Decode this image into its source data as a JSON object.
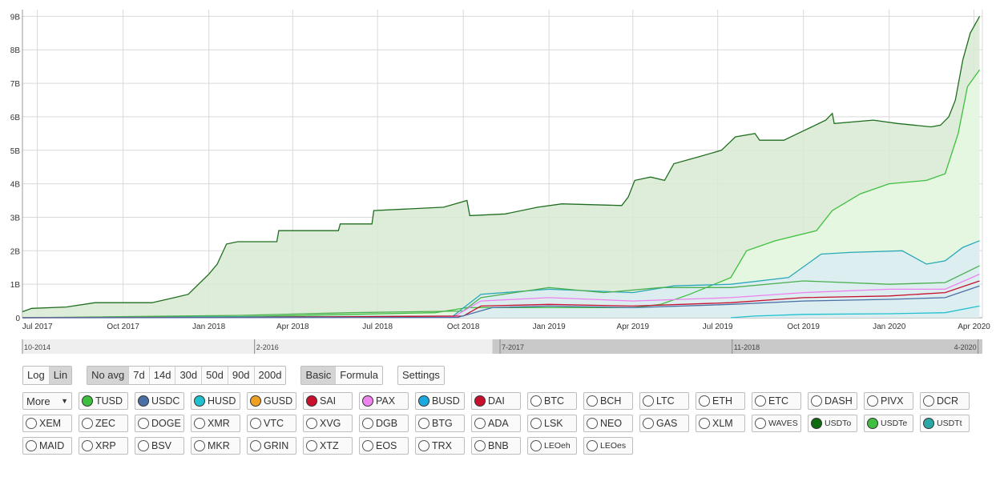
{
  "chart_data": {
    "type": "area",
    "ylim": [
      0,
      9200000000
    ],
    "y_ticks": [
      "0",
      "1B",
      "2B",
      "3B",
      "4B",
      "5B",
      "6B",
      "7B",
      "8B",
      "9B"
    ],
    "y_tick_values": [
      0,
      1000000000,
      2000000000,
      3000000000,
      4000000000,
      5000000000,
      6000000000,
      7000000000,
      8000000000,
      9000000000
    ],
    "x_ticks": [
      "Jul 2017",
      "Oct 2017",
      "Jan 2018",
      "Apr 2018",
      "Jul 2018",
      "Oct 2018",
      "Jan 2019",
      "Apr 2019",
      "Jul 2019",
      "Oct 2019",
      "Jan 2020",
      "Apr 2020"
    ],
    "x_tick_dates": [
      "2017-07-01",
      "2017-10-01",
      "2018-01-01",
      "2018-04-01",
      "2018-07-01",
      "2018-10-01",
      "2019-01-01",
      "2019-04-01",
      "2019-07-01",
      "2019-10-01",
      "2020-01-01",
      "2020-04-01"
    ],
    "xlim": [
      "2017-06-15",
      "2020-04-10"
    ],
    "grid": true,
    "series": [
      {
        "name": "USDTo",
        "color": "#1f6e1f",
        "fill": "#d8ead2",
        "stacked_total": true,
        "points": [
          [
            "2017-06-15",
            0.18
          ],
          [
            "2017-06-25",
            0.28
          ],
          [
            "2017-08-01",
            0.32
          ],
          [
            "2017-09-01",
            0.45
          ],
          [
            "2017-11-01",
            0.45
          ],
          [
            "2017-11-25",
            0.6
          ],
          [
            "2017-12-10",
            0.7
          ],
          [
            "2018-01-01",
            1.3
          ],
          [
            "2018-01-10",
            1.6
          ],
          [
            "2018-01-20",
            2.2
          ],
          [
            "2018-02-01",
            2.27
          ],
          [
            "2018-03-15",
            2.27
          ],
          [
            "2018-03-17",
            2.6
          ],
          [
            "2018-05-20",
            2.6
          ],
          [
            "2018-05-22",
            2.8
          ],
          [
            "2018-06-25",
            2.8
          ],
          [
            "2018-06-27",
            3.2
          ],
          [
            "2018-09-10",
            3.3
          ],
          [
            "2018-10-05",
            3.5
          ],
          [
            "2018-10-08",
            3.05
          ],
          [
            "2018-11-15",
            3.1
          ],
          [
            "2018-12-20",
            3.3
          ],
          [
            "2019-01-15",
            3.4
          ],
          [
            "2019-03-20",
            3.35
          ],
          [
            "2019-03-27",
            3.6
          ],
          [
            "2019-04-03",
            4.1
          ],
          [
            "2019-04-20",
            4.2
          ],
          [
            "2019-05-05",
            4.1
          ],
          [
            "2019-05-15",
            4.6
          ],
          [
            "2019-06-10",
            4.8
          ],
          [
            "2019-07-05",
            5.0
          ],
          [
            "2019-07-20",
            5.4
          ],
          [
            "2019-08-10",
            5.5
          ],
          [
            "2019-08-15",
            5.3
          ],
          [
            "2019-09-10",
            5.3
          ],
          [
            "2019-09-25",
            5.5
          ],
          [
            "2019-10-10",
            5.7
          ],
          [
            "2019-10-25",
            5.9
          ],
          [
            "2019-11-01",
            6.1
          ],
          [
            "2019-11-03",
            5.8
          ],
          [
            "2019-12-15",
            5.9
          ],
          [
            "2020-01-10",
            5.8
          ],
          [
            "2020-02-15",
            5.7
          ],
          [
            "2020-02-25",
            5.75
          ],
          [
            "2020-03-05",
            6.0
          ],
          [
            "2020-03-12",
            6.5
          ],
          [
            "2020-03-20",
            7.7
          ],
          [
            "2020-03-28",
            8.5
          ],
          [
            "2020-04-07",
            9.0
          ]
        ]
      },
      {
        "name": "USDTe",
        "color": "#3fbf3f",
        "fill": "#e6f7e2",
        "points": [
          [
            "2017-06-15",
            0.0
          ],
          [
            "2018-02-01",
            0.03
          ],
          [
            "2018-06-01",
            0.1
          ],
          [
            "2018-09-01",
            0.15
          ],
          [
            "2018-10-05",
            0.3
          ],
          [
            "2018-11-15",
            0.3
          ],
          [
            "2019-04-01",
            0.3
          ],
          [
            "2019-05-01",
            0.4
          ],
          [
            "2019-06-01",
            0.7
          ],
          [
            "2019-07-15",
            1.2
          ],
          [
            "2019-08-01",
            2.0
          ],
          [
            "2019-09-01",
            2.3
          ],
          [
            "2019-10-15",
            2.6
          ],
          [
            "2019-11-01",
            3.2
          ],
          [
            "2019-12-01",
            3.7
          ],
          [
            "2020-01-01",
            4.0
          ],
          [
            "2020-02-10",
            4.1
          ],
          [
            "2020-03-01",
            4.3
          ],
          [
            "2020-03-15",
            5.5
          ],
          [
            "2020-03-25",
            6.9
          ],
          [
            "2020-04-07",
            7.4
          ]
        ]
      },
      {
        "name": "USDTt",
        "color": "#2aa8b8",
        "fill": "#dcecf3",
        "points": [
          [
            "2017-06-15",
            0.0
          ],
          [
            "2018-09-20",
            0.05
          ],
          [
            "2018-10-20",
            0.7
          ],
          [
            "2019-01-01",
            0.85
          ],
          [
            "2019-04-01",
            0.75
          ],
          [
            "2019-05-15",
            0.95
          ],
          [
            "2019-07-15",
            1.0
          ],
          [
            "2019-09-15",
            1.2
          ],
          [
            "2019-10-20",
            1.9
          ],
          [
            "2019-11-20",
            1.95
          ],
          [
            "2020-01-15",
            2.0
          ],
          [
            "2020-02-10",
            1.6
          ],
          [
            "2020-03-01",
            1.7
          ],
          [
            "2020-03-20",
            2.1
          ],
          [
            "2020-04-07",
            2.3
          ]
        ]
      },
      {
        "name": "TUSD",
        "color": "#4caf50",
        "fill": "none",
        "points": [
          [
            "2017-06-15",
            0.0
          ],
          [
            "2018-02-01",
            0.07
          ],
          [
            "2018-06-01",
            0.15
          ],
          [
            "2018-10-01",
            0.2
          ],
          [
            "2018-10-20",
            0.6
          ],
          [
            "2019-01-01",
            0.9
          ],
          [
            "2019-03-01",
            0.75
          ],
          [
            "2019-05-01",
            0.9
          ],
          [
            "2019-07-15",
            0.9
          ],
          [
            "2019-10-01",
            1.1
          ],
          [
            "2020-01-01",
            1.0
          ],
          [
            "2020-03-01",
            1.05
          ],
          [
            "2020-04-07",
            1.55
          ]
        ]
      },
      {
        "name": "PAX",
        "color": "#ee82ee",
        "fill": "none",
        "points": [
          [
            "2017-06-15",
            0.0
          ],
          [
            "2018-09-20",
            0.02
          ],
          [
            "2018-10-20",
            0.5
          ],
          [
            "2019-01-01",
            0.6
          ],
          [
            "2019-04-01",
            0.5
          ],
          [
            "2019-07-15",
            0.6
          ],
          [
            "2019-10-01",
            0.75
          ],
          [
            "2020-01-01",
            0.85
          ],
          [
            "2020-03-01",
            0.85
          ],
          [
            "2020-04-07",
            1.3
          ]
        ]
      },
      {
        "name": "SAI",
        "color": "#c8102e",
        "fill": "none",
        "points": [
          [
            "2017-06-15",
            0.0
          ],
          [
            "2018-02-01",
            0.01
          ],
          [
            "2018-10-01",
            0.05
          ],
          [
            "2018-10-20",
            0.35
          ],
          [
            "2019-01-01",
            0.4
          ],
          [
            "2019-04-01",
            0.35
          ],
          [
            "2019-07-15",
            0.45
          ],
          [
            "2019-10-01",
            0.6
          ],
          [
            "2020-01-01",
            0.65
          ],
          [
            "2020-03-01",
            0.75
          ],
          [
            "2020-04-07",
            1.1
          ]
        ]
      },
      {
        "name": "USDC",
        "color": "#4a6fa5",
        "fill": "none",
        "points": [
          [
            "2017-06-15",
            0.0
          ],
          [
            "2018-09-25",
            0.01
          ],
          [
            "2018-11-01",
            0.3
          ],
          [
            "2019-01-01",
            0.35
          ],
          [
            "2019-04-01",
            0.3
          ],
          [
            "2019-07-15",
            0.4
          ],
          [
            "2019-10-01",
            0.5
          ],
          [
            "2020-01-01",
            0.55
          ],
          [
            "2020-03-01",
            0.6
          ],
          [
            "2020-04-07",
            0.95
          ]
        ]
      },
      {
        "name": "HUSD",
        "color": "#20c0cf",
        "fill": "none",
        "points": [
          [
            "2019-07-15",
            0.0
          ],
          [
            "2019-08-10",
            0.05
          ],
          [
            "2019-10-01",
            0.1
          ],
          [
            "2020-01-01",
            0.12
          ],
          [
            "2020-03-01",
            0.15
          ],
          [
            "2020-04-07",
            0.35
          ]
        ]
      }
    ],
    "y_unit_multiplier": 1000000000
  },
  "navigator": {
    "labels": [
      "10-2014",
      "2-2016",
      "7-2017",
      "11-2018",
      "4-2020"
    ],
    "label_dates": [
      "2014-10-01",
      "2016-02-01",
      "2017-07-01",
      "2018-11-01",
      "2020-04-01"
    ],
    "range": [
      "2014-10-01",
      "2020-04-10"
    ],
    "selected": [
      "2017-06-15",
      "2020-04-10"
    ]
  },
  "controls": {
    "scale": [
      {
        "label": "Log",
        "on": false
      },
      {
        "label": "Lin",
        "on": true
      }
    ],
    "avg": [
      {
        "label": "No avg",
        "on": true
      },
      {
        "label": "7d",
        "on": false
      },
      {
        "label": "14d",
        "on": false
      },
      {
        "label": "30d",
        "on": false
      },
      {
        "label": "50d",
        "on": false
      },
      {
        "label": "90d",
        "on": false
      },
      {
        "label": "200d",
        "on": false
      }
    ],
    "mode": [
      {
        "label": "Basic",
        "on": true
      },
      {
        "label": "Formula",
        "on": false
      }
    ],
    "settings": "Settings"
  },
  "coins": {
    "more_label": "More",
    "rows": [
      [
        [
          "TUSD",
          "#3fbf3f"
        ],
        [
          "USDC",
          "#4a6fa5"
        ],
        [
          "HUSD",
          "#20c0cf"
        ],
        [
          "GUSD",
          "#f0a020"
        ],
        [
          "SAI",
          "#c8102e"
        ],
        [
          "PAX",
          "#ee82ee"
        ],
        [
          "BUSD",
          "#1aa8e0"
        ],
        [
          "DAI",
          "#c8102e"
        ],
        [
          "BTC",
          ""
        ],
        [
          "BCH",
          ""
        ],
        [
          "LTC",
          ""
        ],
        [
          "ETH",
          ""
        ],
        [
          "ETC",
          ""
        ],
        [
          "DASH",
          ""
        ],
        [
          "PIVX",
          ""
        ],
        [
          "DCR",
          ""
        ]
      ],
      [
        [
          "XEM",
          ""
        ],
        [
          "ZEC",
          ""
        ],
        [
          "DOGE",
          ""
        ],
        [
          "XMR",
          ""
        ],
        [
          "VTC",
          ""
        ],
        [
          "XVG",
          ""
        ],
        [
          "DGB",
          ""
        ],
        [
          "BTG",
          ""
        ],
        [
          "ADA",
          ""
        ],
        [
          "LSK",
          ""
        ],
        [
          "NEO",
          ""
        ],
        [
          "GAS",
          ""
        ],
        [
          "XLM",
          ""
        ],
        [
          "WAVES",
          ""
        ],
        [
          "USDTo",
          "#0e6a0e"
        ],
        [
          "USDTe",
          "#3fbf3f"
        ],
        [
          "USDTt",
          "#2aa8a8"
        ]
      ],
      [
        [
          "MAID",
          ""
        ],
        [
          "XRP",
          ""
        ],
        [
          "BSV",
          ""
        ],
        [
          "MKR",
          ""
        ],
        [
          "GRIN",
          ""
        ],
        [
          "XTZ",
          ""
        ],
        [
          "EOS",
          ""
        ],
        [
          "TRX",
          ""
        ],
        [
          "BNB",
          ""
        ],
        [
          "LEOeh",
          ""
        ],
        [
          "LEOes",
          ""
        ]
      ]
    ]
  }
}
